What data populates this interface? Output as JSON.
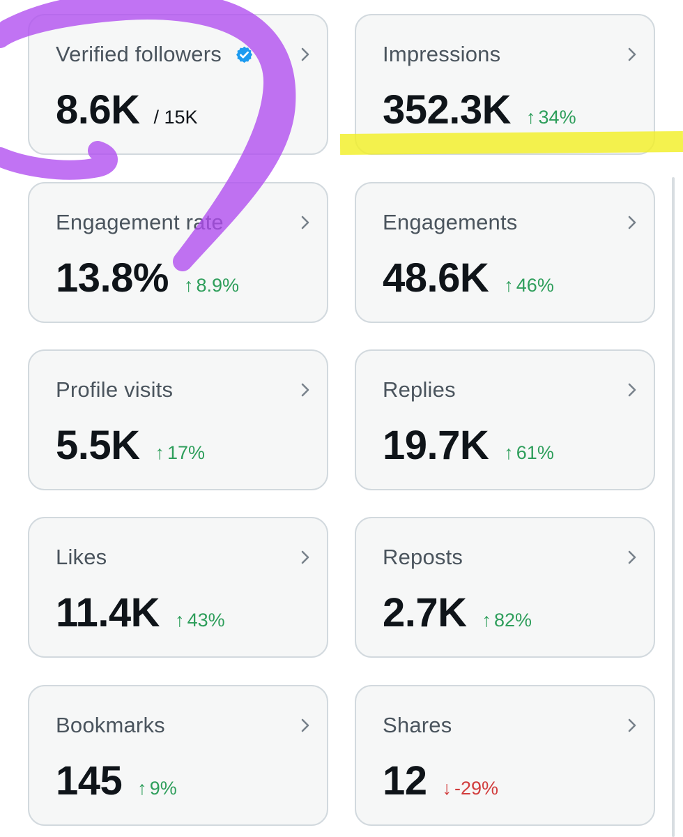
{
  "metrics": [
    {
      "label": "Verified followers",
      "value": "8.6K",
      "total": "/ 15K",
      "verified_badge": "verified-check-icon",
      "badge_color": "#1d9bf0"
    },
    {
      "label": "Impressions",
      "value": "352.3K",
      "delta_arrow": "↑",
      "delta": "34%",
      "trend": "up"
    },
    {
      "label": "Engagement rate",
      "value": "13.8%",
      "delta_arrow": "↑",
      "delta": "8.9%",
      "trend": "up"
    },
    {
      "label": "Engagements",
      "value": "48.6K",
      "delta_arrow": "↑",
      "delta": "46%",
      "trend": "up"
    },
    {
      "label": "Profile visits",
      "value": "5.5K",
      "delta_arrow": "↑",
      "delta": "17%",
      "trend": "up"
    },
    {
      "label": "Replies",
      "value": "19.7K",
      "delta_arrow": "↑",
      "delta": "61%",
      "trend": "up"
    },
    {
      "label": "Likes",
      "value": "11.4K",
      "delta_arrow": "↑",
      "delta": "43%",
      "trend": "up"
    },
    {
      "label": "Reposts",
      "value": "2.7K",
      "delta_arrow": "↑",
      "delta": "82%",
      "trend": "up"
    },
    {
      "label": "Bookmarks",
      "value": "145",
      "delta_arrow": "↑",
      "delta": "9%",
      "trend": "up"
    },
    {
      "label": "Shares",
      "value": "12",
      "delta_arrow": "↓",
      "delta": "-29%",
      "trend": "down"
    }
  ],
  "colors": {
    "card_bg": "#f6f7f7",
    "card_border": "#d2d9de",
    "up": "#2e9e5b",
    "down": "#d13d3d",
    "purple_annotation": "#b04cf0",
    "yellow_highlight": "#f2ef27"
  },
  "icons": {
    "chevron": "chevron-right-icon",
    "verified": "verified-check-icon"
  }
}
